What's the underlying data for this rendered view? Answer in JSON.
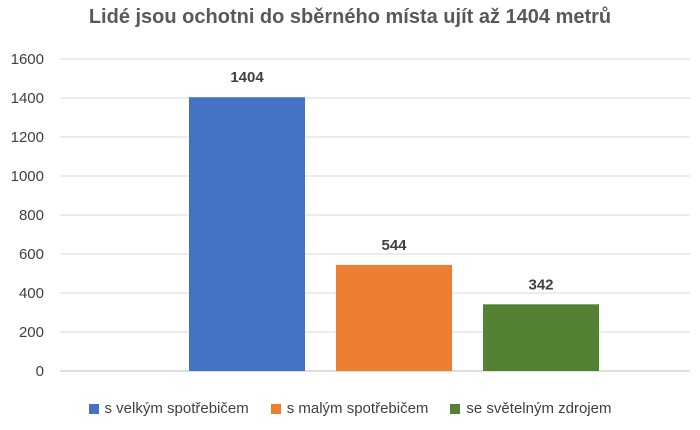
{
  "chart_data": {
    "type": "bar",
    "title": "Lidé jsou ochotni do sběrného místa ujít až 1404 metrů",
    "xlabel": "",
    "ylabel": "",
    "ylim": [
      0,
      1600
    ],
    "yticks": [
      0,
      200,
      400,
      600,
      800,
      1000,
      1200,
      1400,
      1600
    ],
    "grid": true,
    "legend_position": "bottom",
    "series": [
      {
        "name": "s velkým spotřebičem",
        "value": 1404,
        "label": "1404",
        "color": "#4472C4"
      },
      {
        "name": "s malým spotřebičem",
        "value": 544,
        "label": "544",
        "color": "#ED7D31"
      },
      {
        "name": "se světelným zdrojem",
        "value": 342,
        "label": "342",
        "color": "#548235"
      }
    ]
  }
}
